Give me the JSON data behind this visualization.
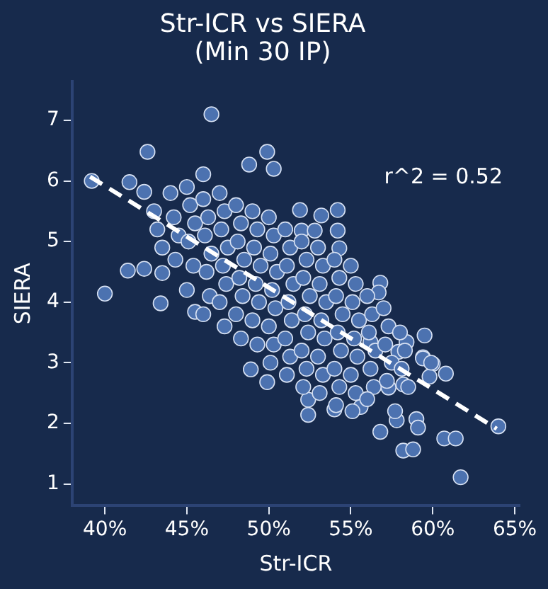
{
  "chart_data": {
    "type": "scatter",
    "title": "Str-ICR vs SIERA",
    "subtitle": "(Min 30 IP)",
    "xlabel": "Str-ICR",
    "ylabel": "SIERA",
    "xlim": [
      38,
      65.3
    ],
    "ylim": [
      0.64,
      7.64
    ],
    "xticks": [
      {
        "value": 40,
        "label": "40%"
      },
      {
        "value": 45,
        "label": "45%"
      },
      {
        "value": 50,
        "label": "50%"
      },
      {
        "value": 55,
        "label": "55%"
      },
      {
        "value": 60,
        "label": "60%"
      },
      {
        "value": 65,
        "label": "65%"
      }
    ],
    "yticks": [
      1,
      2,
      3,
      4,
      5,
      6,
      7
    ],
    "grid": false,
    "legend": false,
    "marker": "circle",
    "annotations": [
      "r^2 = 0.52"
    ],
    "series": [
      {
        "color": "#4c72b0",
        "x": [
          46.5,
          42.6,
          39.2,
          41.5,
          42.4,
          49.9,
          48.8,
          50.3,
          46.0,
          41.4,
          42.4,
          40.0,
          43.4,
          43.5,
          45.5,
          48.9,
          49.9,
          52.4,
          52.4,
          51.9,
          53.2,
          54.2,
          52.0,
          52.8,
          54.2,
          54.3,
          56.8,
          56.7,
          59.5,
          56.2,
          59.4,
          60.0,
          60.8,
          59.8,
          59.4,
          59.0,
          59.1,
          56.8,
          58.2,
          58.8,
          60.7,
          61.4,
          61.7,
          64.0,
          57.8,
          57.7,
          54.0,
          55.6,
          58.4,
          57.9,
          59.9,
          58.2,
          57.3,
          43.0,
          43.2,
          43.5,
          44.0,
          44.2,
          44.5,
          44.3,
          45.0,
          45.2,
          45.5,
          45.1,
          45.4,
          45.0,
          46.0,
          46.3,
          46.1,
          46.5,
          46.2,
          46.4,
          46.0,
          47.0,
          47.3,
          47.1,
          47.5,
          47.2,
          47.4,
          47.0,
          47.3,
          48.0,
          48.3,
          48.1,
          48.5,
          48.2,
          48.4,
          48.0,
          48.3,
          49.0,
          49.3,
          49.1,
          49.5,
          49.2,
          49.4,
          49.0,
          49.3,
          50.0,
          50.3,
          50.1,
          50.5,
          50.2,
          50.4,
          50.0,
          50.3,
          50.1,
          51.0,
          51.3,
          51.1,
          51.5,
          51.2,
          51.4,
          51.0,
          51.3,
          51.1,
          52.0,
          52.3,
          52.1,
          52.5,
          52.2,
          52.4,
          52.0,
          52.3,
          52.1,
          53.0,
          53.3,
          53.1,
          53.5,
          53.2,
          53.4,
          53.0,
          53.3,
          53.1,
          54.0,
          54.3,
          54.1,
          54.5,
          54.2,
          54.4,
          54.0,
          54.3,
          54.1,
          55.0,
          55.3,
          55.1,
          55.5,
          55.2,
          55.4,
          55.0,
          55.3,
          55.1,
          56.0,
          56.3,
          56.1,
          56.5,
          56.2,
          56.4,
          56.0,
          57.0,
          57.3,
          57.1,
          57.5,
          57.2,
          58.0,
          58.3,
          58.1,
          58.5
        ],
        "values": [
          7.1,
          6.48,
          6.0,
          5.98,
          5.82,
          6.48,
          6.27,
          6.2,
          6.11,
          4.52,
          4.55,
          4.14,
          3.98,
          4.48,
          3.84,
          2.89,
          2.68,
          2.39,
          2.14,
          5.52,
          5.43,
          5.52,
          5.18,
          5.18,
          5.18,
          4.89,
          4.32,
          4.16,
          3.45,
          3.34,
          3.09,
          2.98,
          2.82,
          2.77,
          3.07,
          2.07,
          1.93,
          1.86,
          1.55,
          1.57,
          1.75,
          1.75,
          1.11,
          1.95,
          2.05,
          2.2,
          2.23,
          2.27,
          3.34,
          3.18,
          3.0,
          2.64,
          2.59,
          5.5,
          5.2,
          4.9,
          5.8,
          5.4,
          5.1,
          4.7,
          5.9,
          5.6,
          5.3,
          5.0,
          4.6,
          4.2,
          5.7,
          5.4,
          5.1,
          4.8,
          4.5,
          4.1,
          3.8,
          5.8,
          5.5,
          5.2,
          4.9,
          4.6,
          4.3,
          4.0,
          3.6,
          5.6,
          5.3,
          5.0,
          4.7,
          4.4,
          4.1,
          3.8,
          3.4,
          5.5,
          5.2,
          4.9,
          4.6,
          4.3,
          4.0,
          3.7,
          3.3,
          5.4,
          5.1,
          4.8,
          4.5,
          4.2,
          3.9,
          3.6,
          3.3,
          3.0,
          5.2,
          4.9,
          4.6,
          4.3,
          4.0,
          3.7,
          3.4,
          3.1,
          2.8,
          5.0,
          4.7,
          4.4,
          4.1,
          3.8,
          3.5,
          3.2,
          2.9,
          2.6,
          4.9,
          4.6,
          4.3,
          4.0,
          3.7,
          3.4,
          3.1,
          2.8,
          2.5,
          4.7,
          4.4,
          4.1,
          3.8,
          3.5,
          3.2,
          2.9,
          2.6,
          2.3,
          4.6,
          4.3,
          4.0,
          3.7,
          3.4,
          3.1,
          2.8,
          2.5,
          2.2,
          4.1,
          3.8,
          3.5,
          3.2,
          2.9,
          2.6,
          2.4,
          3.9,
          3.6,
          3.3,
          3.0,
          2.7,
          3.5,
          3.2,
          2.9,
          2.6
        ]
      },
      {
        "type": "line",
        "color": "#ffffff",
        "line_style": "dashed",
        "marker": "none",
        "x": [
          39.1,
          63.9
        ],
        "values": [
          6.07,
          1.91
        ]
      }
    ]
  }
}
